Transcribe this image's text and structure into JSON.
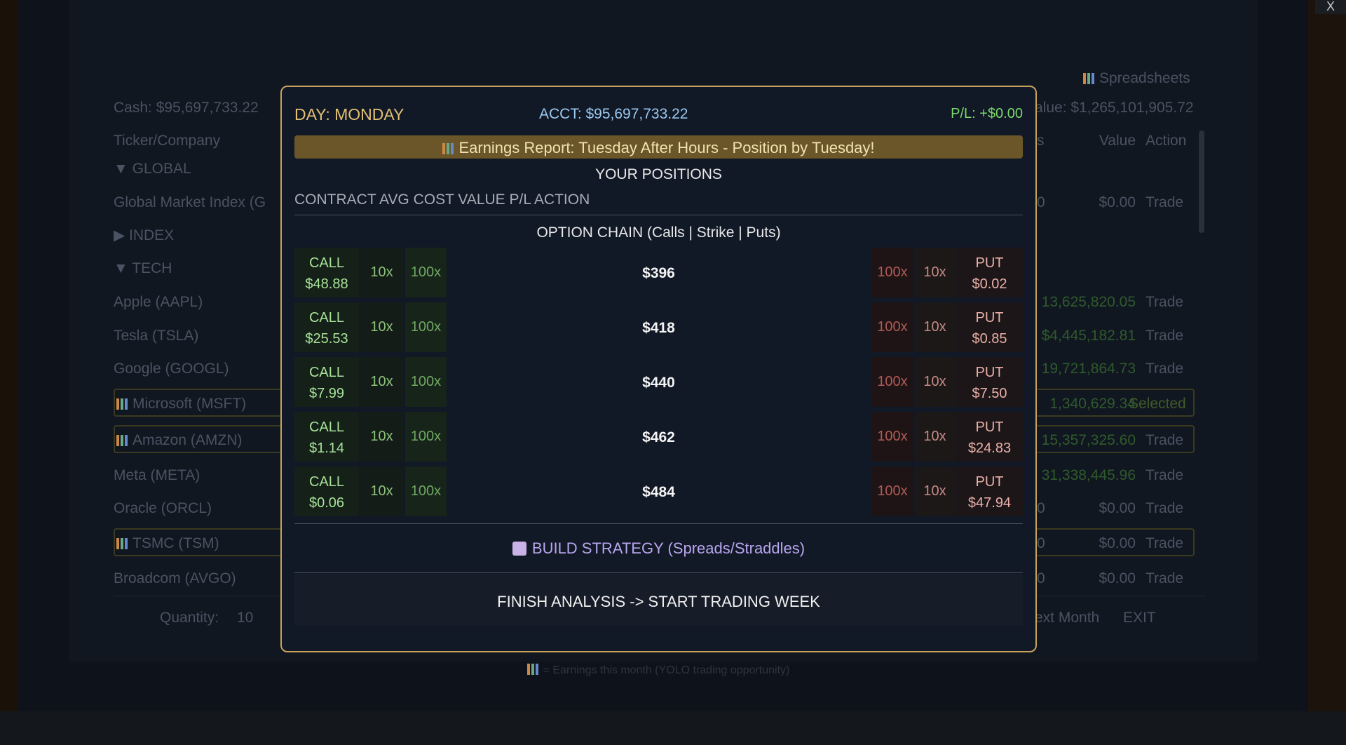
{
  "background": {
    "cash": "Cash: $95,697,733.22",
    "spreadsheets": "Spreadsheets",
    "portfolio_value": "alue: $1,265,101,905.72",
    "headers": {
      "ticker": "Ticker/Company",
      "qty": "s",
      "value": "Value",
      "action": "Action"
    },
    "rows": [
      {
        "name": "▼ GLOBAL"
      },
      {
        "name": "Global Market Index (G",
        "qty": "0",
        "value": "$0.00",
        "action": "Trade"
      },
      {
        "name": "▶ INDEX"
      },
      {
        "name": "▼ TECH"
      },
      {
        "name": "Apple (AAPL)",
        "value": "13,625,820.05",
        "action": "Trade"
      },
      {
        "name": "Tesla (TSLA)",
        "value": "$4,445,182.81",
        "action": "Trade"
      },
      {
        "name": "Google (GOOGL)",
        "value": "19,721,864.73",
        "action": "Trade"
      },
      {
        "name": "Microsoft (MSFT)",
        "value": "1,340,629.34",
        "action": "Selected",
        "earnings": true
      },
      {
        "name": "Amazon (AMZN)",
        "value": "15,357,325.60",
        "action": "Trade",
        "earnings": true
      },
      {
        "name": "Meta (META)",
        "value": "31,338,445.96",
        "action": "Trade"
      },
      {
        "name": "Oracle (ORCL)",
        "qty": "0",
        "value": "$0.00",
        "action": "Trade"
      },
      {
        "name": "TSMC (TSM)",
        "qty": "0",
        "value": "$0.00",
        "action": "Trade",
        "earnings": true
      },
      {
        "name": "Broadcom (AVGO)",
        "qty": "0",
        "value": "$0.00",
        "action": "Trade"
      }
    ],
    "quantity_label": "Quantity:",
    "quantity": "10",
    "next_month": "ext Month",
    "exit": "EXIT",
    "footnote": "= Earnings this month (YOLO trading opportunity)",
    "close": "X"
  },
  "modal": {
    "day": "DAY: MONDAY",
    "account": "ACCT: $95,697,733.22",
    "pl": "P/L: +$0.00",
    "banner": "Earnings Report: Tuesday After Hours - Position by Tuesday!",
    "positions_title": "YOUR POSITIONS",
    "positions_header": "CONTRACT AVG COST VALUE P/L ACTION",
    "chain_title": "OPTION CHAIN (Calls | Strike | Puts)",
    "chain": [
      {
        "call": "CALL",
        "call_price": "$48.88",
        "call_buttons": [
          "10x",
          "100x"
        ],
        "strike": "$396",
        "put_buttons": [
          "100x",
          "10x"
        ],
        "put": "PUT",
        "put_price": "$0.02"
      },
      {
        "call": "CALL",
        "call_price": "$25.53",
        "call_buttons": [
          "10x",
          "100x"
        ],
        "strike": "$418",
        "put_buttons": [
          "100x",
          "10x"
        ],
        "put": "PUT",
        "put_price": "$0.85"
      },
      {
        "call": "CALL",
        "call_price": "$7.99",
        "call_buttons": [
          "10x",
          "100x"
        ],
        "strike": "$440",
        "put_buttons": [
          "100x",
          "10x"
        ],
        "put": "PUT",
        "put_price": "$7.50"
      },
      {
        "call": "CALL",
        "call_price": "$1.14",
        "call_buttons": [
          "10x",
          "100x"
        ],
        "strike": "$462",
        "put_buttons": [
          "100x",
          "10x"
        ],
        "put": "PUT",
        "put_price": "$24.83"
      },
      {
        "call": "CALL",
        "call_price": "$0.06",
        "call_buttons": [
          "10x",
          "100x"
        ],
        "strike": "$484",
        "put_buttons": [
          "100x",
          "10x"
        ],
        "put": "PUT",
        "put_price": "$47.94"
      }
    ],
    "strategy": "BUILD STRATEGY (Spreads/Straddles)",
    "finish": "FINISH ANALYSIS -> START TRADING WEEK"
  }
}
